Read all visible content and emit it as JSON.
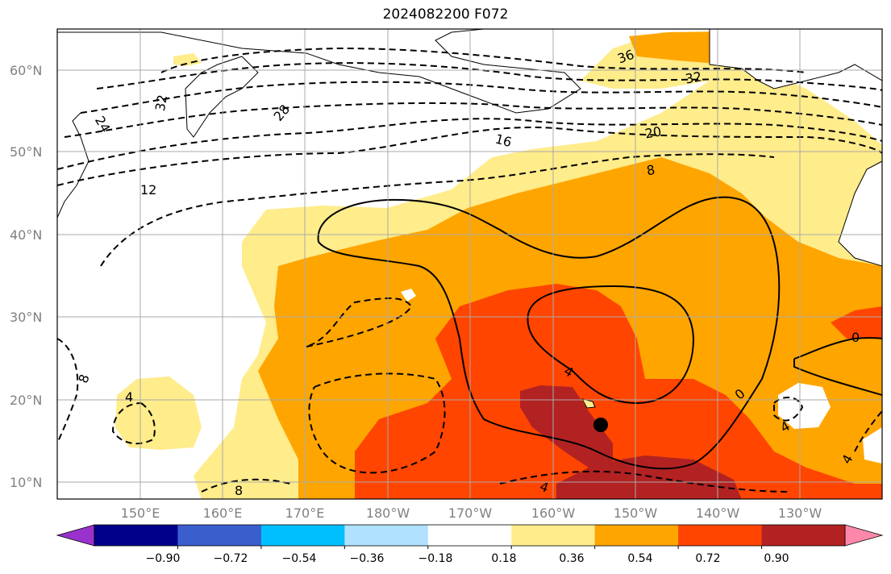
{
  "title": "2024082200 F072",
  "map": {
    "lat_labels": [
      "10°N",
      "20°N",
      "30°N",
      "40°N",
      "50°N",
      "60°N"
    ],
    "lon_labels": [
      "150°E",
      "160°E",
      "170°E",
      "180°W",
      "170°W",
      "160°W",
      "150°W",
      "140°W",
      "130°W"
    ],
    "contour_labels": [
      "36",
      "32",
      "32",
      "28",
      "24",
      "20",
      "16",
      "12",
      "8",
      "8",
      "8",
      "4",
      "4",
      "4",
      "4",
      "4",
      "0",
      "0"
    ],
    "marker": "storm-center"
  },
  "colorbar": {
    "ticks": [
      "−0.90",
      "−0.72",
      "−0.54",
      "−0.36",
      "−0.18",
      "0.18",
      "0.36",
      "0.54",
      "0.72",
      "0.90"
    ],
    "colors": [
      "#9932cc",
      "#00008b",
      "#3a5fcd",
      "#00bfff",
      "#b0e2ff",
      "#ffffff",
      "#ffec8b",
      "#ffa500",
      "#ff4500",
      "#b22222",
      "#ff88aa"
    ]
  }
}
